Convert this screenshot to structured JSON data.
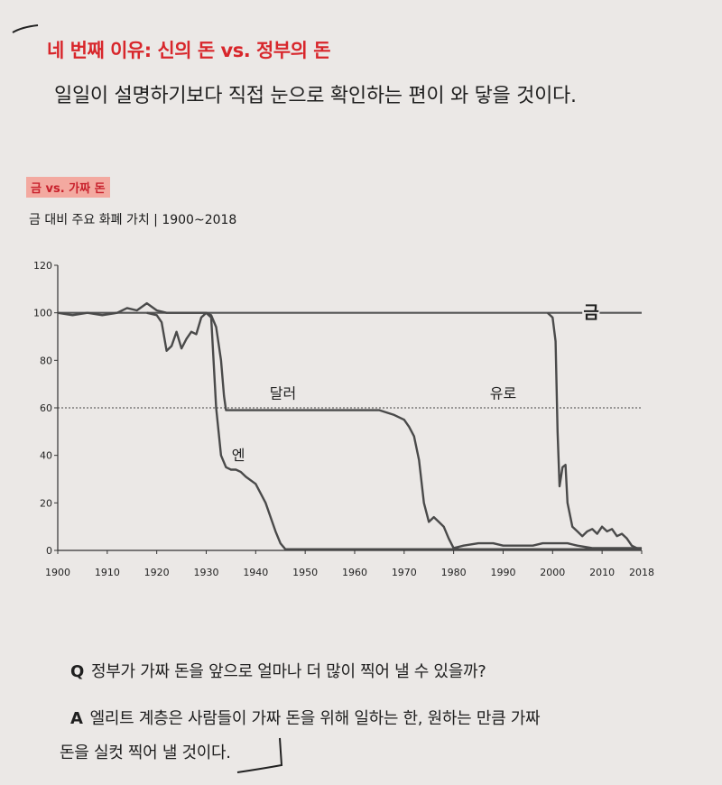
{
  "heading": "네 번째 이유: 신의 돈 vs. 정부의 돈",
  "intro": "일일이 설명하기보다 직접 눈으로 확인하는 편이 와 닿을 것이다.",
  "chart_tag": "금 vs. 가짜 돈",
  "chart_title": "금 대비 주요 화폐 가치 | 1900~2018",
  "chart_data": {
    "type": "line",
    "title": "금 대비 주요 화폐 가치 | 1900~2018",
    "xlim": [
      1900,
      2018
    ],
    "ylim": [
      0,
      120
    ],
    "x_ticks": [
      1900,
      1910,
      1920,
      1930,
      1940,
      1950,
      1960,
      1970,
      1980,
      1990,
      2000,
      2010,
      2018
    ],
    "y_ticks": [
      0,
      20,
      40,
      60,
      80,
      100,
      120
    ],
    "reference_lines": [
      {
        "y": 100,
        "label": "금"
      },
      {
        "y": 60,
        "style": "dotted"
      }
    ],
    "series": [
      {
        "name": "달러",
        "color": "#4a4a4a",
        "points": [
          [
            1900,
            100
          ],
          [
            1903,
            99
          ],
          [
            1906,
            100
          ],
          [
            1909,
            99
          ],
          [
            1912,
            100
          ],
          [
            1914,
            102
          ],
          [
            1916,
            101
          ],
          [
            1918,
            104
          ],
          [
            1920,
            101
          ],
          [
            1922,
            100
          ],
          [
            1924,
            100
          ],
          [
            1927,
            100
          ],
          [
            1929,
            100
          ],
          [
            1930,
            100
          ],
          [
            1931,
            99
          ],
          [
            1932,
            94
          ],
          [
            1933,
            80
          ],
          [
            1933.6,
            65
          ],
          [
            1934,
            59
          ],
          [
            1940,
            59
          ],
          [
            1950,
            59
          ],
          [
            1960,
            59
          ],
          [
            1965,
            59
          ],
          [
            1968,
            57
          ],
          [
            1970,
            55
          ],
          [
            1971,
            52
          ],
          [
            1972,
            48
          ],
          [
            1973,
            38
          ],
          [
            1974,
            20
          ],
          [
            1975,
            12
          ],
          [
            1976,
            14
          ],
          [
            1977,
            12
          ],
          [
            1978,
            10
          ],
          [
            1979,
            5
          ],
          [
            1980,
            1
          ],
          [
            1982,
            2
          ],
          [
            1985,
            3
          ],
          [
            1988,
            3
          ],
          [
            1990,
            2
          ],
          [
            1993,
            2
          ],
          [
            1996,
            2
          ],
          [
            1998,
            3
          ],
          [
            2000,
            3
          ],
          [
            2003,
            3
          ],
          [
            2005,
            2
          ],
          [
            2008,
            1
          ],
          [
            2011,
            1
          ],
          [
            2013,
            1
          ],
          [
            2018,
            1
          ]
        ]
      },
      {
        "name": "엔",
        "color": "#4a4a4a",
        "points": [
          [
            1918,
            100
          ],
          [
            1920,
            99
          ],
          [
            1921,
            96
          ],
          [
            1922,
            84
          ],
          [
            1923,
            86
          ],
          [
            1924,
            92
          ],
          [
            1925,
            85
          ],
          [
            1926,
            89
          ],
          [
            1927,
            92
          ],
          [
            1928,
            91
          ],
          [
            1929,
            98
          ],
          [
            1930,
            100
          ],
          [
            1931,
            98
          ],
          [
            1932,
            60
          ],
          [
            1933,
            40
          ],
          [
            1934,
            35
          ],
          [
            1935,
            34
          ],
          [
            1936,
            34
          ],
          [
            1937,
            33
          ],
          [
            1938,
            31
          ],
          [
            1940,
            28
          ],
          [
            1941,
            24
          ],
          [
            1942,
            20
          ],
          [
            1943,
            14
          ],
          [
            1944,
            8
          ],
          [
            1945,
            3
          ],
          [
            1946,
            0.5
          ],
          [
            1950,
            0.5
          ],
          [
            2018,
            0.5
          ]
        ]
      },
      {
        "name": "유로",
        "color": "#4a4a4a",
        "points": [
          [
            1999,
            100
          ],
          [
            2000,
            98
          ],
          [
            2000.6,
            88
          ],
          [
            2001,
            50
          ],
          [
            2001.4,
            27
          ],
          [
            2002,
            35
          ],
          [
            2002.6,
            36
          ],
          [
            2003,
            20
          ],
          [
            2004,
            10
          ],
          [
            2005,
            8
          ],
          [
            2006,
            6
          ],
          [
            2007,
            8
          ],
          [
            2008,
            9
          ],
          [
            2009,
            7
          ],
          [
            2010,
            10
          ],
          [
            2011,
            8
          ],
          [
            2012,
            9
          ],
          [
            2013,
            6
          ],
          [
            2014,
            7
          ],
          [
            2015,
            5
          ],
          [
            2016,
            2
          ],
          [
            2017,
            1
          ],
          [
            2018,
            0.5
          ]
        ]
      }
    ],
    "annotations": [
      "금",
      "달러",
      "엔",
      "유로"
    ]
  },
  "q_label": "Q",
  "q_text": "정부가 가짜 돈을 앞으로 얼마나 더 많이 찍어 낼 수 있을까?",
  "a_label": "A",
  "a_line1": "엘리트 계층은 사람들이 가짜 돈을 위해 일하는 한, 원하는 만큼 가짜",
  "a_line2": "돈을 실컷 찍어 낼 것이다."
}
